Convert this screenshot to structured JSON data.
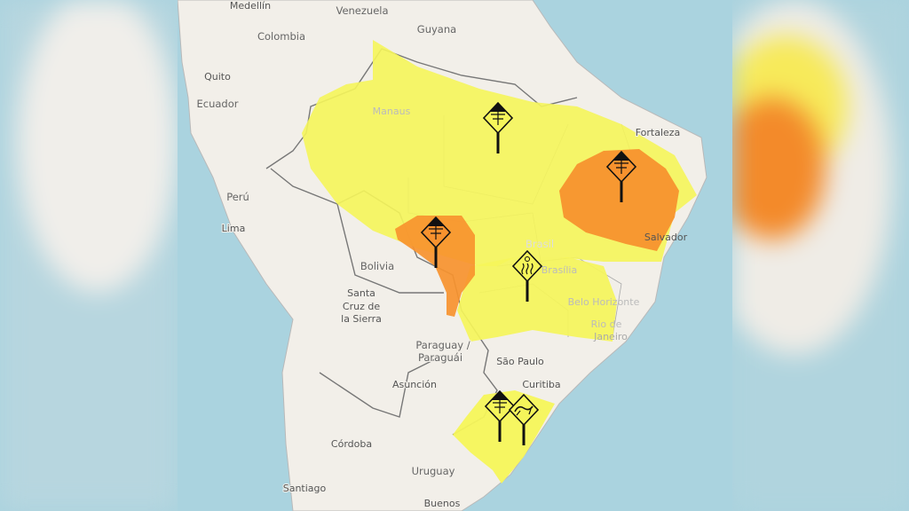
{
  "map": {
    "labels": {
      "medellin": "Medellín",
      "venezuela": "Venezuela",
      "guyana": "Guyana",
      "colombia": "Colombia",
      "quito": "Quito",
      "ecuador": "Ecuador",
      "manaus": "Manaus",
      "fortaleza": "Fortaleza",
      "peru": "Perú",
      "lima": "Lima",
      "salvador": "Salvador",
      "brasil": "Brasil",
      "brasilia": "Brasília",
      "bolivia": "Bolivia",
      "santa_cruz_1": "Santa",
      "santa_cruz_2": "Cruz de",
      "santa_cruz_3": "la Sierra",
      "belo_horizonte": "Belo Horizonte",
      "rio_1": "Rio de",
      "rio_2": "Janeiro",
      "paraguay_1": "Paraguay /",
      "paraguay_2": "Paraguái",
      "sao_paulo": "São Paulo",
      "asuncion": "Asunción",
      "curitiba": "Curitiba",
      "cordoba": "Córdoba",
      "uruguay": "Uruguay",
      "santiago": "Santiago",
      "buenos": "Buenos"
    },
    "colors": {
      "ocean": "#aad3df",
      "land": "#f2efe9",
      "alert_yellow": "#f5f55a",
      "alert_orange": "#f7922e"
    },
    "alerts": [
      {
        "level": "yellow",
        "icon": "storm-warning-icon",
        "region": "North"
      },
      {
        "level": "orange",
        "icon": "storm-warning-icon",
        "region": "Northeast"
      },
      {
        "level": "orange",
        "icon": "storm-warning-icon",
        "region": "Mato Grosso"
      },
      {
        "level": "yellow",
        "icon": "heat-wave-icon",
        "region": "Central-West"
      },
      {
        "level": "yellow",
        "icon": "storm-warning-icon",
        "region": "South"
      },
      {
        "level": "yellow",
        "icon": "gale-wind-icon",
        "region": "South"
      }
    ]
  }
}
